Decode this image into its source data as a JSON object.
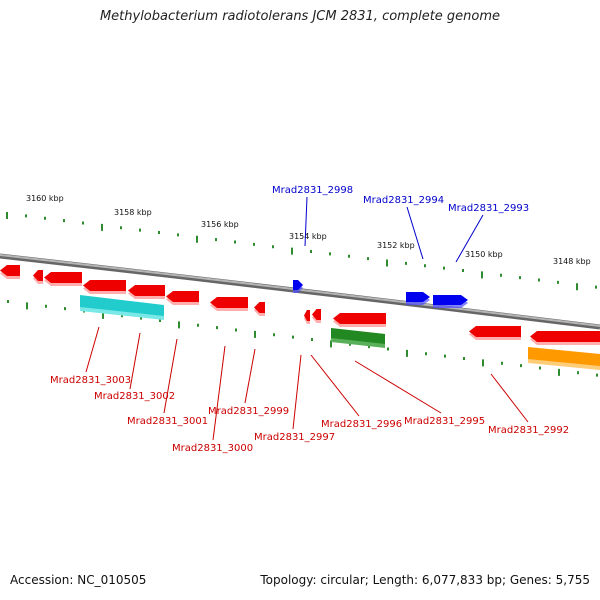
{
  "title": "Methylobacterium radiotolerans JCM 2831, complete genome",
  "footer": {
    "accession": "Accession: NC_010505",
    "summary": "Topology: circular; Length: 6,077,833 bp; Genes: 5,755"
  },
  "colors": {
    "backbone": "#8a8a8a",
    "tick": "#2e8b2e",
    "gene_forward": "#0000ee",
    "gene_reverse": "#ee0000",
    "label_forward": "#0000cc",
    "label_reverse": "#cc0000",
    "cyan": "#22cccc",
    "green": "#228822",
    "orange": "#ff9900"
  },
  "scale_labels": [
    "3160 kbp",
    "3158 kbp",
    "3156 kbp",
    "3154 kbp",
    "3152 kbp",
    "3150 kbp",
    "3148 kbp"
  ],
  "genes_top": [
    "Mrad2831_2998",
    "Mrad2831_2994",
    "Mrad2831_2993"
  ],
  "genes_bottom": [
    "Mrad2831_3003",
    "Mrad2831_3002",
    "Mrad2831_3001",
    "Mrad2831_3000",
    "Mrad2831_2999",
    "Mrad2831_2997",
    "Mrad2831_2996",
    "Mrad2831_2995",
    "Mrad2831_2992"
  ]
}
